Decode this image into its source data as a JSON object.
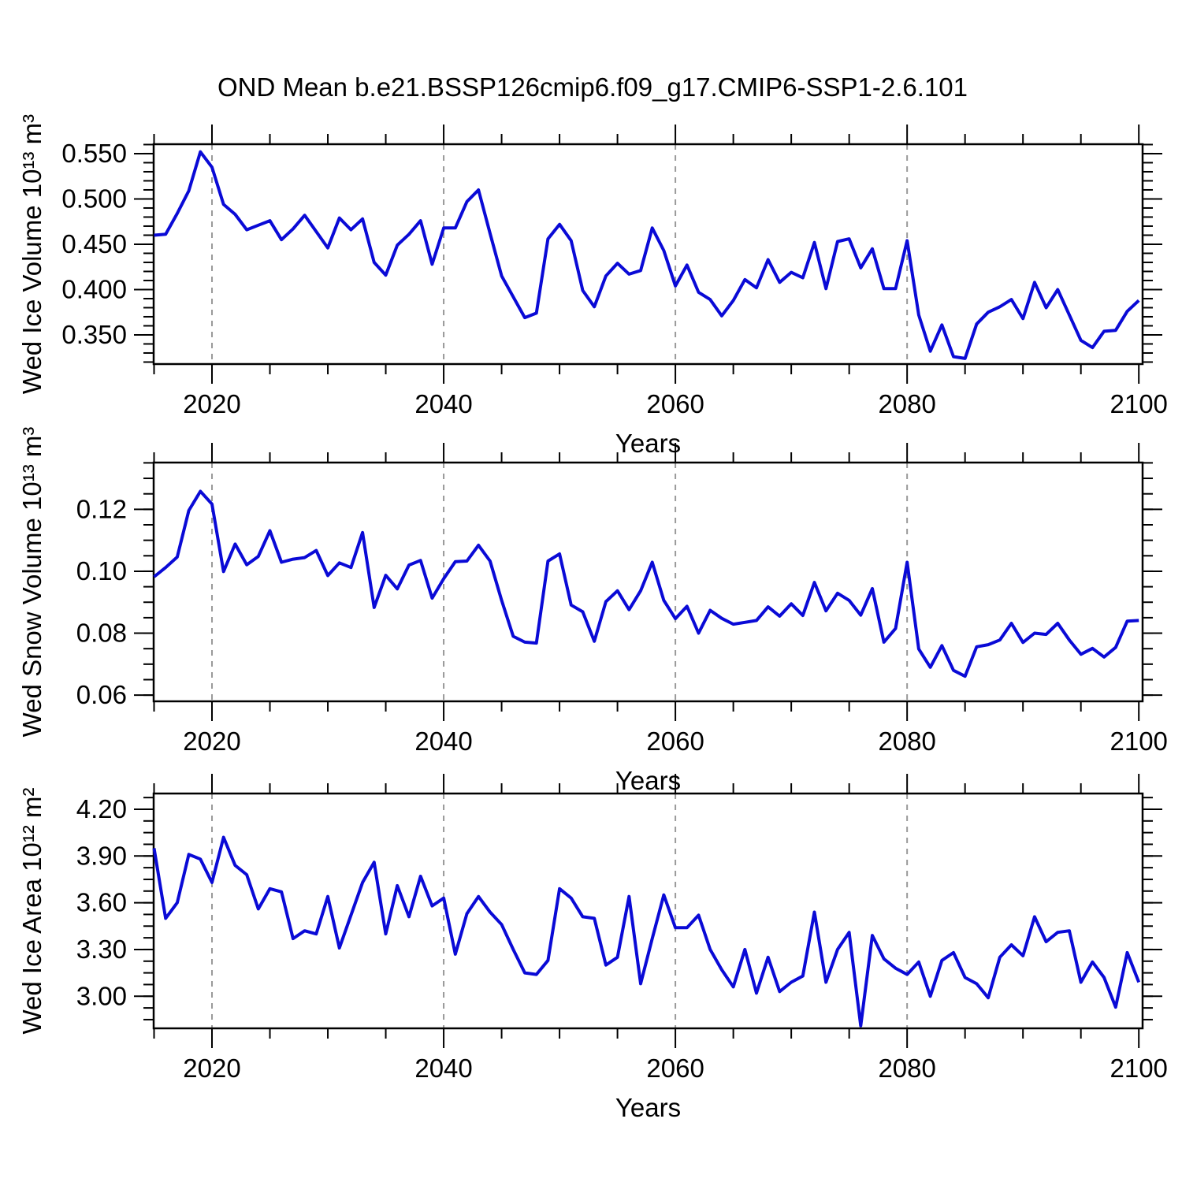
{
  "title": "OND Mean b.e21.BSSP126cmip6.f09_g17.CMIP6-SSP1-2.6.101",
  "colors": {
    "line": "#0a0ad6",
    "axis": "#000000",
    "grid": "#999999",
    "background": "#ffffff"
  },
  "x_axis": {
    "label": "Years",
    "start": 2015,
    "end": 2100,
    "major_ticks": [
      2020,
      2040,
      2060,
      2080,
      2100
    ],
    "minor_step": 5,
    "grid_years": [
      2020,
      2040,
      2060,
      2080
    ]
  },
  "chart_data": [
    {
      "type": "line",
      "name": "ice-volume",
      "ylabel": "Wed Ice Volume 10¹³ m³",
      "xlabel": "Years",
      "legend": null,
      "grid": "vertical-dashed",
      "x_start": 2015,
      "x_end": 2100,
      "ylim": [
        0.3178,
        0.5604
      ],
      "ytick_labels": [
        "0.550",
        "0.500",
        "0.450",
        "0.400",
        "0.350"
      ],
      "ytick_values": [
        0.55,
        0.5,
        0.45,
        0.4,
        0.35
      ],
      "y_minor_step": 0.01,
      "values": [
        0.46,
        0.461,
        0.484,
        0.509,
        0.552,
        0.535,
        0.494,
        0.483,
        0.466,
        0.471,
        0.476,
        0.455,
        0.467,
        0.482,
        0.464,
        0.446,
        0.479,
        0.466,
        0.478,
        0.43,
        0.416,
        0.449,
        0.461,
        0.476,
        0.428,
        0.468,
        0.468,
        0.497,
        0.51,
        0.462,
        0.415,
        0.392,
        0.369,
        0.374,
        0.456,
        0.472,
        0.454,
        0.399,
        0.381,
        0.415,
        0.429,
        0.417,
        0.421,
        0.468,
        0.443,
        0.404,
        0.427,
        0.397,
        0.389,
        0.371,
        0.388,
        0.411,
        0.402,
        0.433,
        0.408,
        0.419,
        0.413,
        0.452,
        0.401,
        0.453,
        0.456,
        0.424,
        0.445,
        0.401,
        0.401,
        0.454,
        0.372,
        0.332,
        0.361,
        0.326,
        0.324,
        0.362,
        0.375,
        0.381,
        0.389,
        0.368,
        0.408,
        0.38,
        0.4,
        0.372,
        0.344,
        0.336,
        0.354,
        0.355,
        0.376,
        0.388
      ]
    },
    {
      "type": "line",
      "name": "snow-volume",
      "ylabel": "Wed Snow Volume 10¹³ m³",
      "xlabel": "Years",
      "legend": null,
      "grid": "vertical-dashed",
      "x_start": 2015,
      "x_end": 2100,
      "ylim": [
        0.058,
        0.1351
      ],
      "ytick_labels": [
        "0.12",
        "0.10",
        "0.08",
        "0.06"
      ],
      "ytick_values": [
        0.12,
        0.1,
        0.08,
        0.06
      ],
      "y_minor_step": 0.005,
      "values": [
        0.0982,
        0.1012,
        0.1046,
        0.1196,
        0.1258,
        0.1217,
        0.0999,
        0.1088,
        0.1021,
        0.1048,
        0.1131,
        0.1029,
        0.1039,
        0.1044,
        0.1067,
        0.0986,
        0.1027,
        0.1012,
        0.1125,
        0.0883,
        0.0987,
        0.0943,
        0.102,
        0.1035,
        0.0913,
        0.0976,
        0.1031,
        0.1033,
        0.1084,
        0.1033,
        0.0906,
        0.079,
        0.0771,
        0.0768,
        0.1033,
        0.1056,
        0.0891,
        0.0869,
        0.0774,
        0.0902,
        0.0937,
        0.0876,
        0.0937,
        0.1029,
        0.0906,
        0.0847,
        0.0887,
        0.08,
        0.0874,
        0.0848,
        0.0829,
        0.0835,
        0.0841,
        0.0885,
        0.0855,
        0.0895,
        0.0857,
        0.0964,
        0.0872,
        0.0929,
        0.0906,
        0.0858,
        0.0944,
        0.0771,
        0.0815,
        0.1029,
        0.0749,
        0.069,
        0.076,
        0.068,
        0.0661,
        0.0756,
        0.0763,
        0.0778,
        0.0832,
        0.077,
        0.08,
        0.0796,
        0.0832,
        0.0778,
        0.0732,
        0.0751,
        0.0723,
        0.0754,
        0.0839,
        0.0841
      ]
    },
    {
      "type": "line",
      "name": "ice-area",
      "ylabel": "Wed Ice Area 10¹² m²",
      "xlabel": "Years",
      "legend": null,
      "grid": "vertical-dashed",
      "x_start": 2015,
      "x_end": 2100,
      "ylim": [
        2.794,
        4.301
      ],
      "ytick_labels": [
        "4.20",
        "3.90",
        "3.60",
        "3.30",
        "3.00"
      ],
      "ytick_values": [
        4.2,
        3.9,
        3.6,
        3.3,
        3.0
      ],
      "y_minor_step": 0.075,
      "values": [
        3.95,
        3.5,
        3.6,
        3.91,
        3.88,
        3.73,
        4.02,
        3.84,
        3.78,
        3.56,
        3.69,
        3.67,
        3.37,
        3.42,
        3.4,
        3.64,
        3.31,
        3.52,
        3.73,
        3.86,
        3.4,
        3.71,
        3.51,
        3.77,
        3.58,
        3.63,
        3.27,
        3.53,
        3.64,
        3.54,
        3.46,
        3.3,
        3.15,
        3.14,
        3.23,
        3.69,
        3.63,
        3.51,
        3.5,
        3.2,
        3.25,
        3.64,
        3.08,
        3.37,
        3.65,
        3.44,
        3.44,
        3.52,
        3.3,
        3.17,
        3.06,
        3.3,
        3.02,
        3.25,
        3.03,
        3.09,
        3.13,
        3.54,
        3.09,
        3.3,
        3.41,
        2.81,
        3.39,
        3.24,
        3.18,
        3.14,
        3.22,
        3.0,
        3.23,
        3.28,
        3.12,
        3.08,
        2.99,
        3.25,
        3.33,
        3.26,
        3.51,
        3.35,
        3.41,
        3.42,
        3.09,
        3.22,
        3.12,
        2.93,
        3.28,
        3.09
      ]
    }
  ]
}
